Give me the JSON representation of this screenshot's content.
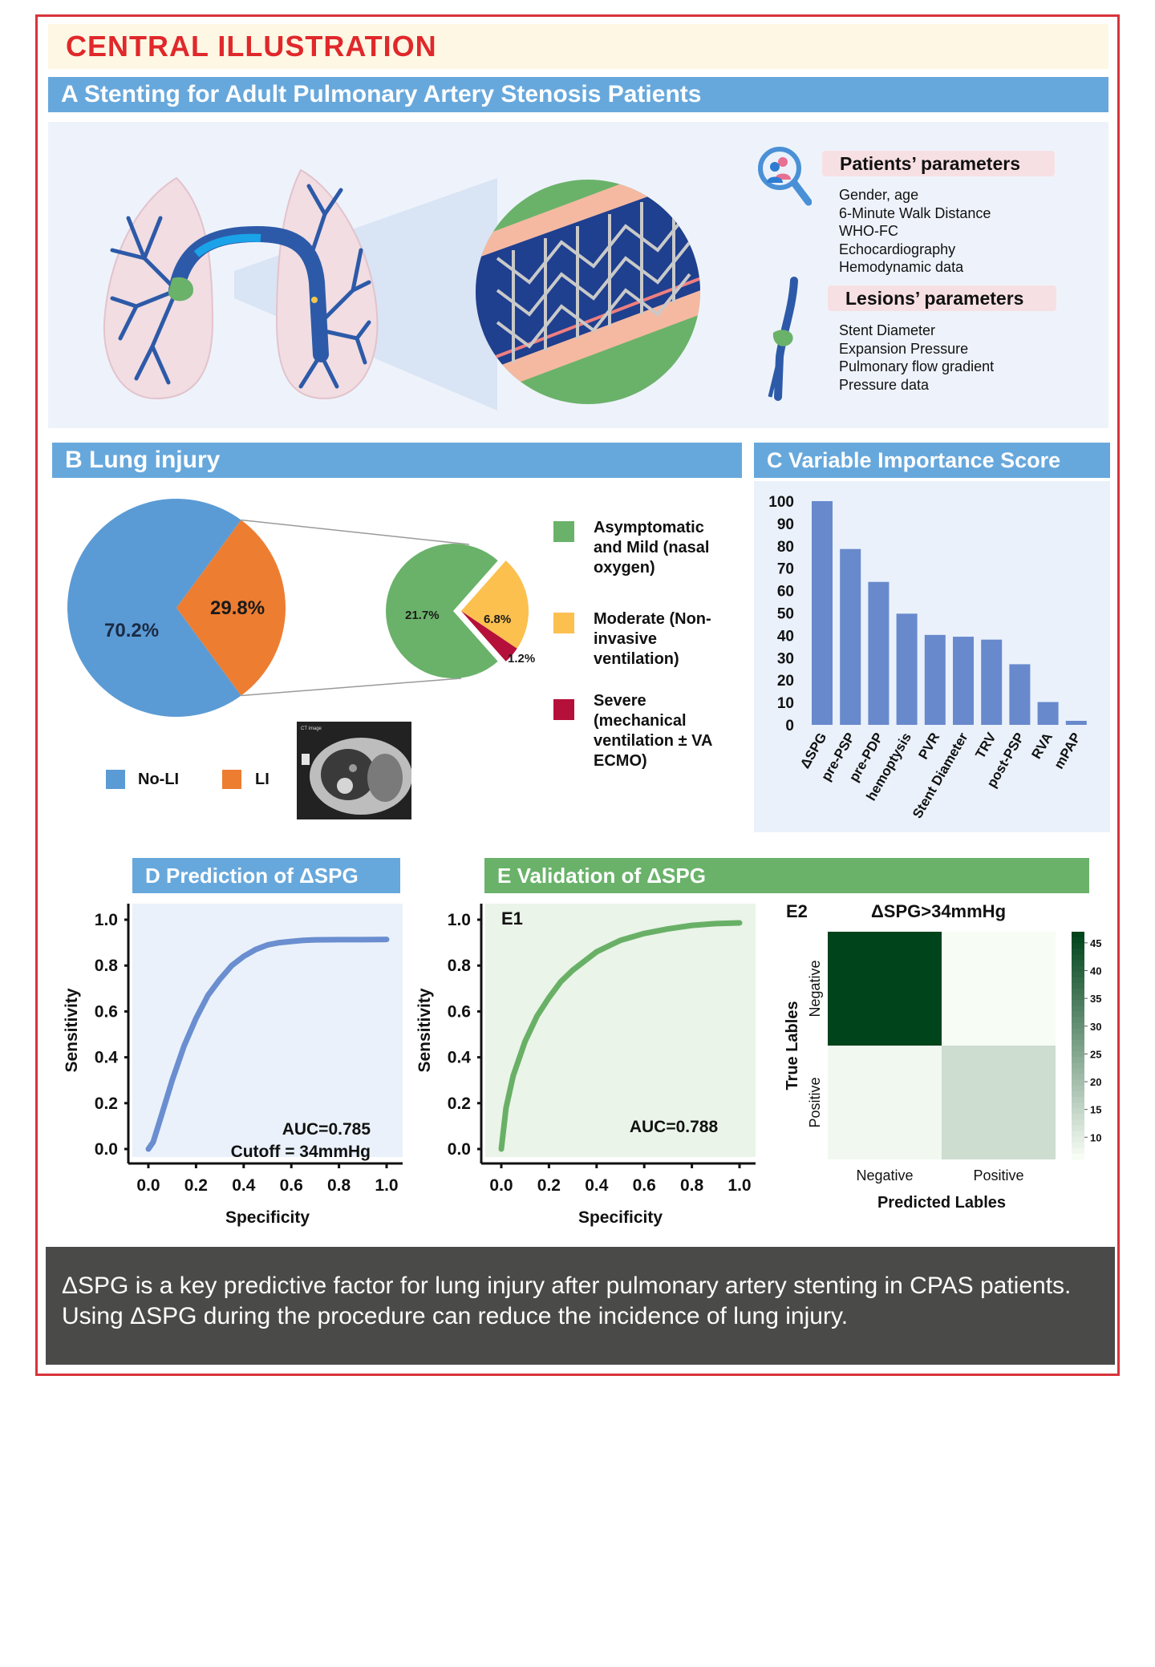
{
  "title": "CENTRAL ILLUSTRATION",
  "panel_a": {
    "header": "A Stenting for Adult Pulmonary Artery Stenosis Patients",
    "patients_title": "Patients’ parameters",
    "patients_items": [
      "Gender, age",
      "6-Minute Walk Distance",
      "WHO-FC",
      "Echocardiography",
      "Hemodynamic data"
    ],
    "lesions_title": "Lesions’ parameters",
    "lesions_items": [
      "Stent Diameter",
      "Expansion Pressure",
      "Pulmonary flow gradient",
      "Pressure data"
    ]
  },
  "panel_b": {
    "header": "B Lung  injury",
    "ct_label": "CT image",
    "legend": [
      {
        "label": "No-LI",
        "color": "#5b9bd5"
      },
      {
        "label": "LI",
        "color": "#ed7d31"
      }
    ],
    "severity_legend": [
      {
        "label": "Asymptomatic and Mild (nasal oxygen)",
        "color": "#6ab26a"
      },
      {
        "label": "Moderate (Non-invasive ventilation)",
        "color": "#fcc04f"
      },
      {
        "label": "Severe (mechanical ventilation ± VA ECMO)",
        "color": "#b5103a"
      }
    ]
  },
  "chart_data": [
    {
      "id": "lung-injury-pie",
      "type": "pie",
      "labels": [
        "No-LI",
        "LI"
      ],
      "values": [
        70.2,
        29.8
      ],
      "value_labels": [
        "70.2%",
        "29.8%"
      ],
      "colors": [
        "#5b9bd5",
        "#ed7d31"
      ]
    },
    {
      "id": "li-severity-pie",
      "type": "pie",
      "labels": [
        "Asymptomatic and Mild (nasal oxygen)",
        "Moderate (Non-invasive ventilation)",
        "Severe (mechanical ventilation ± VA ECMO)"
      ],
      "values": [
        21.7,
        6.8,
        1.2
      ],
      "value_labels": [
        "21.7%",
        "6.8%",
        "1.2%"
      ],
      "colors": [
        "#6ab26a",
        "#fcc04f",
        "#b5103a"
      ]
    },
    {
      "id": "variable-importance",
      "type": "bar",
      "title": "C Variable Importance Score",
      "categories": [
        "ΔSPG",
        "pre-PSP",
        "pre-PDP",
        "hemoptysis",
        "PVR",
        "Stent Diameter",
        "TRV",
        "post-PSP",
        "RVA",
        "mPAP"
      ],
      "values": [
        100,
        78.6,
        63.9,
        49.7,
        40.2,
        39.4,
        38.1,
        27.1,
        10.2,
        1.8
      ],
      "yticks": [
        0,
        10,
        20,
        30,
        40,
        50,
        60,
        70,
        80,
        90,
        100
      ],
      "ylim": [
        0,
        100
      ],
      "color": "#6889cc"
    },
    {
      "id": "roc-prediction",
      "type": "line",
      "title": "D Prediction of ΔSPG",
      "xlabel": "Specificity",
      "ylabel": "Sensitivity",
      "xticks": [
        "0.0",
        "0.2",
        "0.4",
        "0.6",
        "0.8",
        "1.0"
      ],
      "yticks": [
        "0.0",
        "0.2",
        "0.4",
        "0.6",
        "0.8",
        "1.0"
      ],
      "xlim": [
        0,
        1
      ],
      "ylim": [
        0,
        1
      ],
      "x": [
        0.0,
        0.02,
        0.05,
        0.1,
        0.15,
        0.2,
        0.25,
        0.3,
        0.35,
        0.4,
        0.45,
        0.5,
        0.55,
        0.6,
        0.65,
        0.7,
        0.8,
        0.9,
        1.0
      ],
      "y": [
        0.0,
        0.03,
        0.13,
        0.3,
        0.45,
        0.57,
        0.67,
        0.74,
        0.8,
        0.84,
        0.87,
        0.89,
        0.9,
        0.905,
        0.91,
        0.912,
        0.913,
        0.913,
        0.914
      ],
      "annotations": [
        "AUC=0.785",
        "Cutoff = 34mmHg"
      ],
      "color": "#6a8ecf"
    },
    {
      "id": "roc-validation",
      "type": "line",
      "title": "E Validation of ΔSPG",
      "subtitle": "E1",
      "xlabel": "Specificity",
      "ylabel": "Sensitivity",
      "xticks": [
        "0.0",
        "0.2",
        "0.4",
        "0.6",
        "0.8",
        "1.0"
      ],
      "yticks": [
        "0.0",
        "0.2",
        "0.4",
        "0.6",
        "0.8",
        "1.0"
      ],
      "xlim": [
        0,
        1
      ],
      "ylim": [
        0,
        1
      ],
      "x": [
        0.0,
        0.02,
        0.05,
        0.1,
        0.15,
        0.2,
        0.25,
        0.3,
        0.4,
        0.5,
        0.6,
        0.7,
        0.8,
        0.9,
        1.0
      ],
      "y": [
        0.0,
        0.18,
        0.32,
        0.47,
        0.58,
        0.66,
        0.73,
        0.78,
        0.86,
        0.91,
        0.94,
        0.96,
        0.975,
        0.983,
        0.986
      ],
      "annotations": [
        "AUC=0.788"
      ],
      "color": "#69b067"
    },
    {
      "id": "confusion-matrix",
      "type": "heatmap",
      "subtitle": "E2",
      "title": "ΔSPG>34mmHg",
      "xlabel": "Predicted Lables",
      "ylabel": "True Lables",
      "x_categories": [
        "Negative",
        "Positive"
      ],
      "y_categories": [
        "Negative",
        "Positive"
      ],
      "values": [
        [
          47,
          6
        ],
        [
          7,
          13
        ]
      ],
      "colorbar_ticks": [
        45,
        40,
        35,
        30,
        25,
        20,
        15,
        10
      ],
      "colorbar_range": [
        6,
        47
      ]
    }
  ],
  "conclusion": "ΔSPG is a key predictive factor for lung injury after pulmonary artery stenting in CPAS patients. Using ΔSPG during the procedure can reduce the incidence of lung injury."
}
